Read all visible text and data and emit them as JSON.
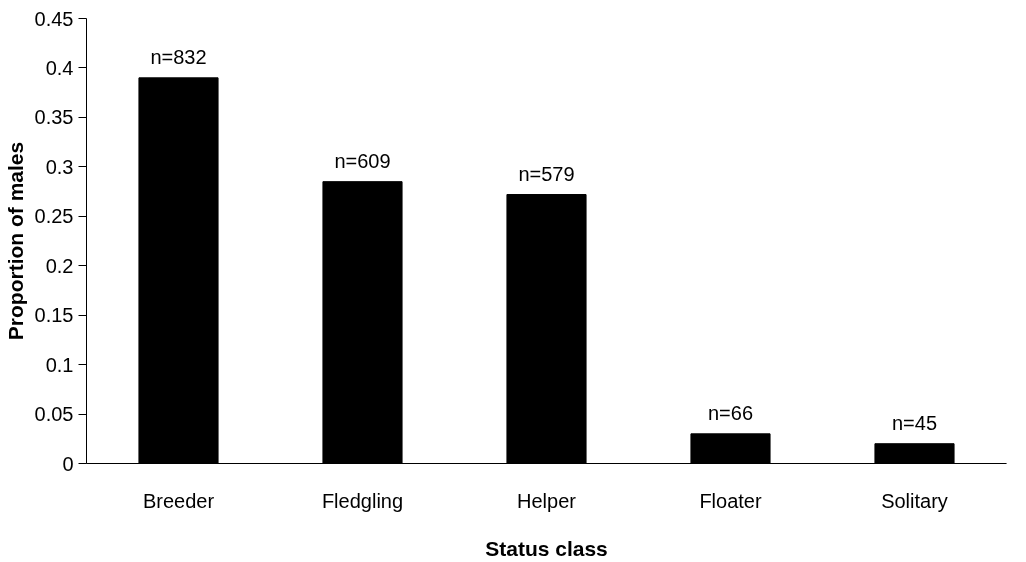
{
  "chart_data": {
    "type": "bar",
    "xlabel": "Status class",
    "ylabel": "Proportion of males",
    "categories": [
      "Breeder",
      "Fledgling",
      "Helper",
      "Floater",
      "Solitary"
    ],
    "values": [
      0.39,
      0.285,
      0.272,
      0.03,
      0.02
    ],
    "color": "#000000",
    "ylim": [
      0,
      0.45
    ],
    "yticks": [
      {
        "value": 0,
        "label": "0"
      },
      0.05,
      0.1,
      0.15,
      0.2,
      0.25,
      0.3,
      0.35,
      0.4,
      0.45
    ],
    "annotations": [
      {
        "text": "n=832",
        "x": "Breeder",
        "y": 0.39
      },
      {
        "text": "n=609",
        "x": "Fledgling",
        "y": 0.285
      },
      {
        "text": "n=579",
        "x": "Helper",
        "y": 0.272
      },
      {
        "text": "n=66",
        "x": "Floater",
        "y": 0.03
      },
      {
        "text": "n=45",
        "x": "Solitary",
        "y": 0.02
      }
    ],
    "grid": false
  }
}
